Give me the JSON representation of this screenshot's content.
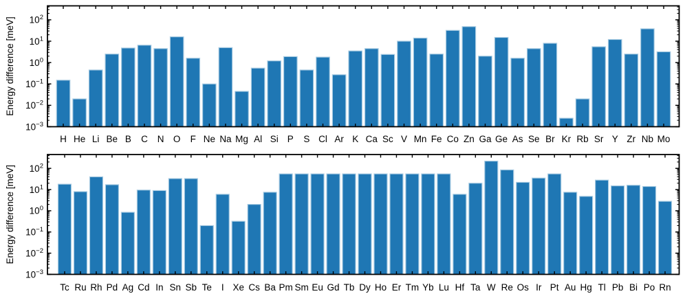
{
  "figure": {
    "background": "#ffffff",
    "axis_color": "#000000",
    "text_color": "#000000",
    "bar_color": "#1f77b4",
    "bar_edge_color": "#a8cbe2"
  },
  "chart_data": [
    {
      "panel": "top",
      "type": "bar",
      "yscale": "log",
      "title": "",
      "xlabel": "",
      "ylabel": "Energy difference [meV]",
      "ylim": [
        0.001,
        450
      ],
      "ytick_exponents": [
        -3,
        -2,
        -1,
        0,
        1,
        2
      ],
      "grid": false,
      "legend": null,
      "categories": [
        "H",
        "He",
        "Li",
        "Be",
        "B",
        "C",
        "N",
        "O",
        "F",
        "Ne",
        "Na",
        "Mg",
        "Al",
        "Si",
        "P",
        "S",
        "Cl",
        "Ar",
        "K",
        "Ca",
        "Sc",
        "V",
        "Mn",
        "Fe",
        "Co",
        "Zn",
        "Ga",
        "Ge",
        "As",
        "Se",
        "Br",
        "Kr",
        "Rb",
        "Sr",
        "Y",
        "Zr",
        "Nb",
        "Mo"
      ],
      "values": [
        0.15,
        0.02,
        0.45,
        2.5,
        4.8,
        6.5,
        4.5,
        16,
        1.6,
        0.1,
        5.0,
        0.045,
        0.55,
        1.2,
        1.9,
        0.45,
        1.8,
        0.27,
        3.5,
        4.5,
        2.4,
        10,
        14,
        2.5,
        32,
        48,
        2.0,
        15,
        1.6,
        4.5,
        8.0,
        0.0025,
        0.02,
        5.5,
        12,
        2.5,
        38,
        3.2
      ]
    },
    {
      "panel": "bottom",
      "type": "bar",
      "yscale": "log",
      "title": "",
      "xlabel": "",
      "ylabel": "Energy difference [meV]",
      "ylim": [
        0.001,
        450
      ],
      "ytick_exponents": [
        -3,
        -2,
        -1,
        0,
        1,
        2
      ],
      "grid": false,
      "legend": null,
      "categories": [
        "Tc",
        "Ru",
        "Rh",
        "Pd",
        "Ag",
        "Cd",
        "In",
        "Sn",
        "Sb",
        "Te",
        "I",
        "Xe",
        "Cs",
        "Ba",
        "Pm",
        "Sm",
        "Eu",
        "Gd",
        "Tb",
        "Dy",
        "Ho",
        "Er",
        "Tm",
        "Yb",
        "Lu",
        "Hf",
        "Ta",
        "W",
        "Re",
        "Os",
        "Ir",
        "Pt",
        "Au",
        "Hg",
        "Tl",
        "Pb",
        "Bi",
        "Po",
        "Rn"
      ],
      "values": [
        18,
        8,
        40,
        17,
        0.85,
        9.5,
        9,
        33,
        33,
        0.2,
        6,
        0.32,
        2,
        7.5,
        55,
        55,
        55,
        55,
        55,
        55,
        55,
        55,
        55,
        55,
        55,
        6,
        20,
        220,
        85,
        22,
        35,
        55,
        7.5,
        4.8,
        28,
        15,
        16,
        14,
        2.8
      ]
    }
  ]
}
